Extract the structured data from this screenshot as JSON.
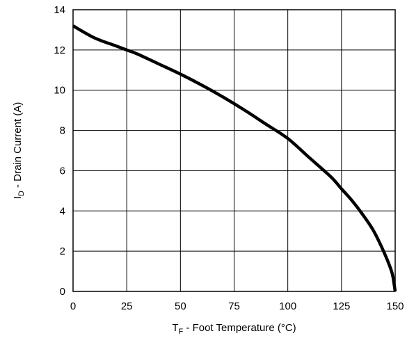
{
  "chart_data": {
    "type": "line",
    "x_axis": {
      "label_main": "T",
      "label_sub": "F",
      "label_rest": " - Foot Temperature (°C)",
      "range": [
        0,
        150
      ],
      "ticks": [
        0,
        25,
        50,
        75,
        100,
        125,
        150
      ]
    },
    "y_axis": {
      "label_main": "I",
      "label_sub": "D",
      "label_rest": " - Drain Current (A)",
      "range": [
        0,
        14
      ],
      "ticks": [
        0,
        2,
        4,
        6,
        8,
        10,
        12,
        14
      ]
    },
    "grid": true,
    "series": [
      {
        "color": "#000000",
        "x": [
          0,
          10,
          20,
          25,
          30,
          40,
          50,
          60,
          70,
          80,
          90,
          100,
          110,
          120,
          125,
          130,
          135,
          140,
          145,
          148,
          149,
          150
        ],
        "y": [
          13.2,
          12.6,
          12.2,
          12.0,
          11.8,
          11.3,
          10.8,
          10.25,
          9.65,
          9.0,
          8.3,
          7.6,
          6.65,
          5.7,
          5.1,
          4.5,
          3.8,
          3.0,
          1.9,
          1.1,
          0.7,
          0.0
        ]
      }
    ]
  }
}
